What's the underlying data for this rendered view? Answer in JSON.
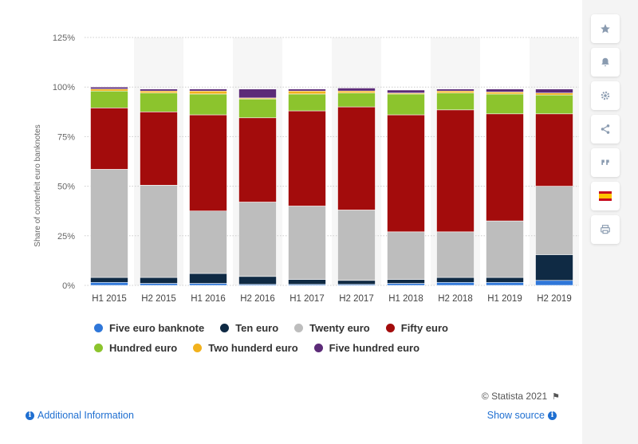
{
  "chart_data": {
    "type": "bar",
    "stacked": true,
    "categories": [
      "H1 2015",
      "H2 2015",
      "H1 2016",
      "H2 2016",
      "H1 2017",
      "H2 2017",
      "H1 2018",
      "H2 2018",
      "H1 2019",
      "H2 2019"
    ],
    "series": [
      {
        "name": "Five euro banknote",
        "color": "#2f77d9",
        "values": [
          1.5,
          1.0,
          1.0,
          0.5,
          0.5,
          0.5,
          1.0,
          1.5,
          1.5,
          2.5
        ]
      },
      {
        "name": "Ten euro",
        "color": "#0f2a44",
        "values": [
          2.5,
          3.0,
          5.0,
          4.0,
          2.5,
          2.0,
          2.0,
          2.5,
          2.5,
          13.0
        ]
      },
      {
        "name": "Twenty euro",
        "color": "#bdbdbd",
        "values": [
          54.5,
          46.5,
          31.5,
          37.5,
          37.0,
          35.5,
          24.0,
          23.0,
          28.5,
          34.5
        ]
      },
      {
        "name": "Fifty euro",
        "color": "#a30c0c",
        "values": [
          31.0,
          37.0,
          48.5,
          42.5,
          48.0,
          52.0,
          59.0,
          61.5,
          54.0,
          36.5
        ]
      },
      {
        "name": "Hundred euro",
        "color": "#8cc42d",
        "values": [
          8.5,
          9.5,
          10.5,
          9.5,
          8.5,
          7.0,
          10.5,
          8.5,
          10.0,
          9.5
        ]
      },
      {
        "name": "Two hunderd euro",
        "color": "#f2b21d",
        "values": [
          1.0,
          1.0,
          1.5,
          0.5,
          1.5,
          1.0,
          0.5,
          1.0,
          1.0,
          1.0
        ]
      },
      {
        "name": "Five hundred euro",
        "color": "#5c2b78",
        "values": [
          1.0,
          1.0,
          1.0,
          4.5,
          1.0,
          1.5,
          1.5,
          1.0,
          1.5,
          2.0
        ]
      }
    ],
    "ylabel": "Share of conterfeit euro banknotes",
    "ylim": [
      0,
      125
    ],
    "yticks": [
      0,
      25,
      50,
      75,
      100,
      125
    ],
    "ytick_labels": [
      "0%",
      "25%",
      "50%",
      "75%",
      "100%",
      "125%"
    ],
    "grid": true,
    "legend_position": "bottom"
  },
  "footer": {
    "credit": "© Statista 2021",
    "additional_info": "Additional Information",
    "show_source": "Show source"
  },
  "sidebar": {
    "icons": [
      "star-icon",
      "bell-icon",
      "gear-icon",
      "share-icon",
      "quote-icon",
      "spain-flag-icon",
      "print-icon"
    ]
  }
}
